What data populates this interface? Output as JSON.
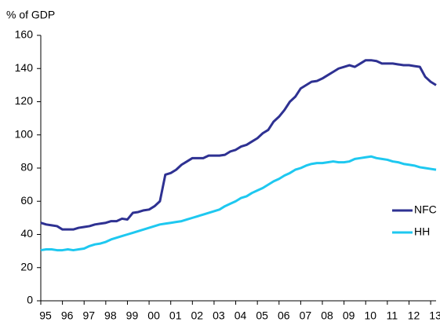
{
  "chart_data": {
    "type": "line",
    "y_label": "% of GDP",
    "categories": [
      "95",
      null,
      null,
      null,
      "96",
      null,
      null,
      null,
      "97",
      null,
      null,
      null,
      "98",
      null,
      null,
      null,
      "99",
      null,
      null,
      null,
      "00",
      null,
      null,
      null,
      "01",
      null,
      null,
      null,
      "02",
      null,
      null,
      null,
      "03",
      null,
      null,
      null,
      "04",
      null,
      null,
      null,
      "05",
      null,
      null,
      null,
      "06",
      null,
      null,
      null,
      "07",
      null,
      null,
      null,
      "08",
      null,
      null,
      null,
      "09",
      null,
      null,
      null,
      "10",
      null,
      null,
      null,
      "11",
      null,
      null,
      null,
      "12",
      null,
      null,
      null,
      "13",
      null
    ],
    "series": [
      {
        "name": "NFC",
        "color": "#2e3192",
        "values": [
          47,
          46,
          45.5,
          45,
          43,
          43,
          43,
          44,
          44.5,
          45,
          46,
          46.5,
          47,
          48,
          48,
          49.5,
          49,
          53,
          53.5,
          54.5,
          55,
          57,
          60,
          76,
          77,
          79,
          82,
          84,
          86,
          86,
          86,
          87.5,
          87.5,
          87.5,
          88,
          90,
          91,
          93,
          94,
          96,
          98,
          101,
          103,
          108,
          111,
          115,
          120,
          123,
          128,
          130,
          132,
          132.5,
          134,
          136,
          138,
          140,
          141,
          142,
          141,
          143,
          145,
          145,
          144.5,
          143,
          143,
          143,
          142.5,
          142,
          142,
          141.5,
          141,
          135,
          132,
          130
        ]
      },
      {
        "name": "HH",
        "color": "#1ec8f0",
        "values": [
          30.5,
          31,
          31,
          30.5,
          30.5,
          31,
          30.5,
          31,
          31.5,
          33,
          34,
          34.5,
          35.5,
          37,
          38,
          39,
          40,
          41,
          42,
          43,
          44,
          45,
          46,
          46.5,
          47,
          47.5,
          48,
          49,
          50,
          51,
          52,
          53,
          54,
          55,
          57,
          58.5,
          60,
          62,
          63,
          65,
          66.5,
          68,
          70,
          72,
          73.5,
          75.5,
          77,
          79,
          80,
          81.5,
          82.5,
          83,
          83,
          83.5,
          84,
          83.5,
          83.5,
          84,
          85.5,
          86,
          86.5,
          87,
          86,
          85.5,
          85,
          84,
          83.5,
          82.5,
          82,
          81.5,
          80.5,
          80,
          79.5,
          79
        ]
      }
    ],
    "ylim": [
      0,
      160
    ],
    "yticks": [
      0,
      20,
      40,
      60,
      80,
      100,
      120,
      140,
      160
    ],
    "legend": "right"
  }
}
